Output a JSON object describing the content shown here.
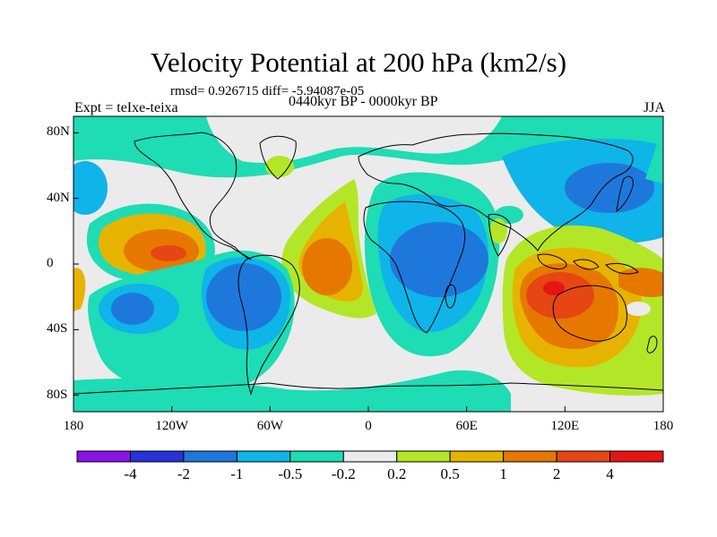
{
  "title": "Velocity Potential at 200 hPa (km2/s)",
  "stats": "rmsd= 0.926715 diff= -5.94087e-05",
  "expt": "Expt = teIxe-teixa",
  "period": "0440kyr BP - 0000kyr BP",
  "season": "JJA",
  "y_ticks": [
    "80N",
    "40N",
    "0",
    "40S",
    "80S"
  ],
  "y_tick_lat": [
    80,
    40,
    0,
    -40,
    -80
  ],
  "x_ticks": [
    "180",
    "120W",
    "60W",
    "0",
    "60E",
    "120E",
    "180"
  ],
  "x_tick_lon": [
    -180,
    -120,
    -60,
    0,
    60,
    120,
    180
  ],
  "colorbar": {
    "labels": [
      "-4",
      "-2",
      "-1",
      "-0.5",
      "-0.2",
      "0.2",
      "0.5",
      "1",
      "2",
      "4"
    ],
    "colors": [
      "#8a14e6",
      "#2832d8",
      "#1e78dc",
      "#0fb4e8",
      "#1edcb4",
      "#ebebeb",
      "#b4e628",
      "#e6b400",
      "#e67800",
      "#e64614",
      "#e61414"
    ]
  },
  "palette": {
    "ocean_background": "#ebebeb",
    "teal": "#1edcb4",
    "cyan": "#0fb4e8",
    "blue": "#1e78dc",
    "lime": "#b4e628",
    "yellow": "#e6b400",
    "orange": "#e67800",
    "red_orange": "#e64614",
    "red": "#e61414"
  }
}
